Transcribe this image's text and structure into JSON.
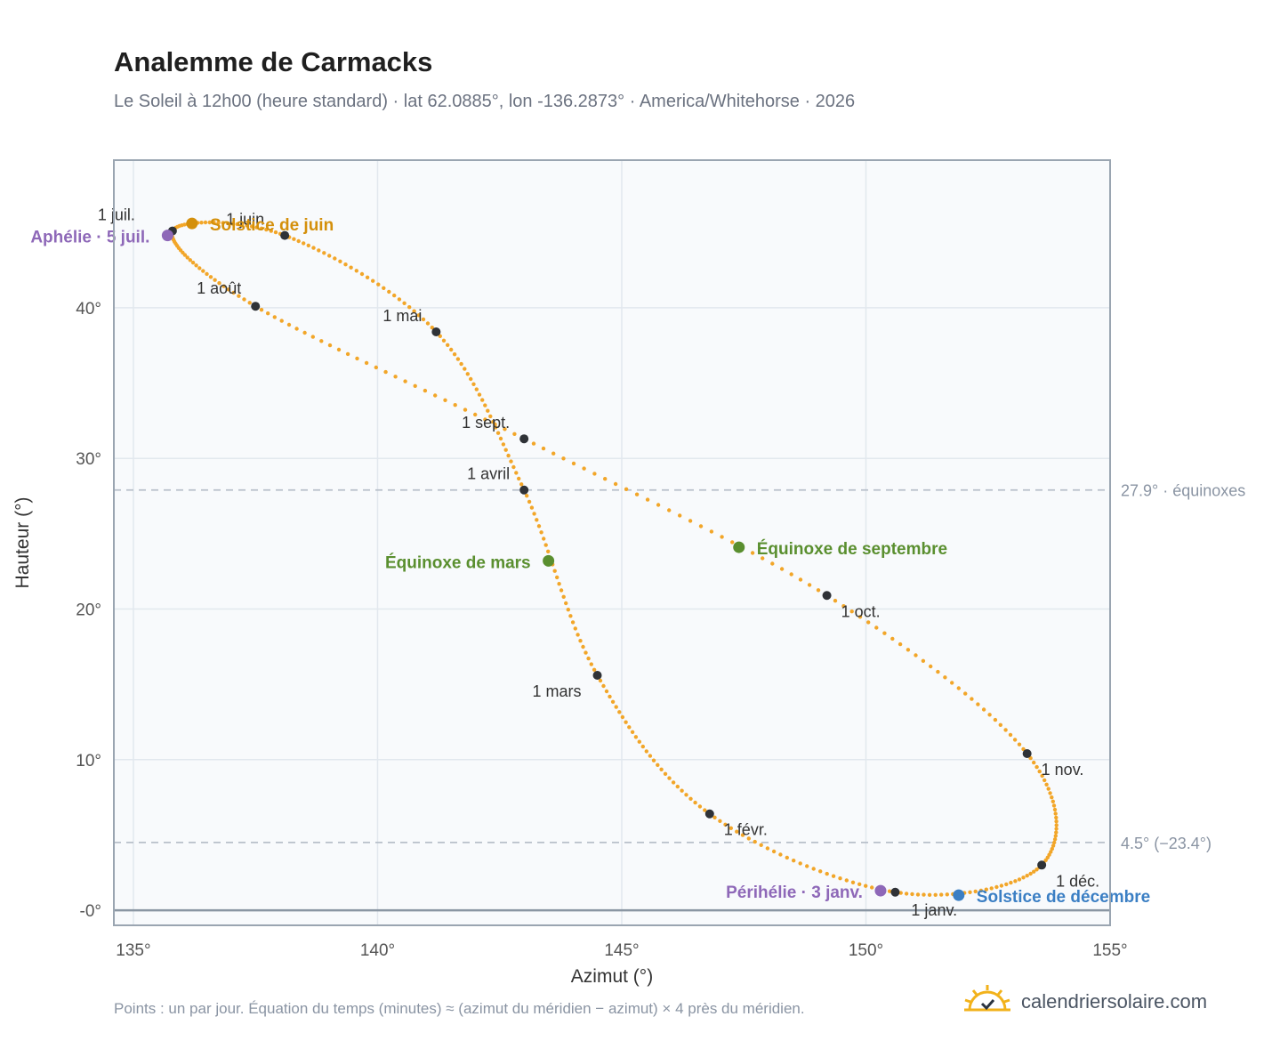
{
  "header": {
    "title": "Analemme de Carmacks",
    "subtitle": "Le Soleil à 12h00 (heure standard) · lat 62.0885°, lon -136.2873° · America/Whitehorse · 2026"
  },
  "footer": {
    "note": "Points : un par jour. Équation du temps (minutes) ≈ (azimut du méridien − azimut) × 4 près du méridien.",
    "brand": "calendriersolaire.com",
    "brand_icon": "sun-check-icon"
  },
  "colors": {
    "curve": "#f2a629",
    "month_marker": "#2f3237",
    "solstice_june": "#d4900c",
    "solstice_december": "#3b7fc4",
    "equinox": "#5a8f2f",
    "apsis": "#8e68b8",
    "reference_line": "#b8c0ca",
    "plot_bg": "#f8fafc",
    "grid": "#e2e8ee"
  },
  "chart_data": {
    "type": "scatter",
    "xlabel": "Azimut (°)",
    "ylabel": "Hauteur (°)",
    "xlim": [
      134.6,
      155
    ],
    "ylim": [
      -1,
      49.8
    ],
    "x_ticks": [
      "135°",
      "140°",
      "145°",
      "150°",
      "155°"
    ],
    "y_ticks": [
      "-0°",
      "10°",
      "20°",
      "30°",
      "40°"
    ],
    "grid": true,
    "series_description": "one point per day",
    "reference_lines": [
      {
        "y": 27.9,
        "label": "27.9° · équinoxes"
      },
      {
        "y": 4.5,
        "label": "4.5° (−23.4°)"
      }
    ],
    "month_points": [
      {
        "label": "1 janv.",
        "x": 150.6,
        "y": 1.2
      },
      {
        "label": "1 févr.",
        "x": 146.8,
        "y": 6.4
      },
      {
        "label": "1 mars",
        "x": 144.5,
        "y": 15.6
      },
      {
        "label": "1 avril",
        "x": 143.0,
        "y": 27.9
      },
      {
        "label": "1 mai",
        "x": 141.2,
        "y": 38.4
      },
      {
        "label": "1 juin",
        "x": 138.1,
        "y": 44.8
      },
      {
        "label": "1 juil.",
        "x": 135.8,
        "y": 45.1
      },
      {
        "label": "1 août",
        "x": 137.5,
        "y": 40.1
      },
      {
        "label": "1 sept.",
        "x": 143.0,
        "y": 31.3
      },
      {
        "label": "1 oct.",
        "x": 149.2,
        "y": 20.9
      },
      {
        "label": "1 nov.",
        "x": 153.3,
        "y": 10.4
      },
      {
        "label": "1 déc.",
        "x": 153.6,
        "y": 3.0
      }
    ],
    "special_points": [
      {
        "label": "Solstice de juin",
        "x": 136.2,
        "y": 45.6,
        "kind": "solstice_june"
      },
      {
        "label": "Aphélie · 5 juil.",
        "x": 135.7,
        "y": 44.8,
        "kind": "apsis"
      },
      {
        "label": "Équinoxe de mars",
        "x": 143.5,
        "y": 23.2,
        "kind": "equinox"
      },
      {
        "label": "Équinoxe de septembre",
        "x": 147.4,
        "y": 24.1,
        "kind": "equinox"
      },
      {
        "label": "Périhélie · 3 janv.",
        "x": 150.3,
        "y": 1.3,
        "kind": "apsis"
      },
      {
        "label": "Solstice de décembre",
        "x": 151.9,
        "y": 1.0,
        "kind": "solstice_december"
      }
    ]
  }
}
